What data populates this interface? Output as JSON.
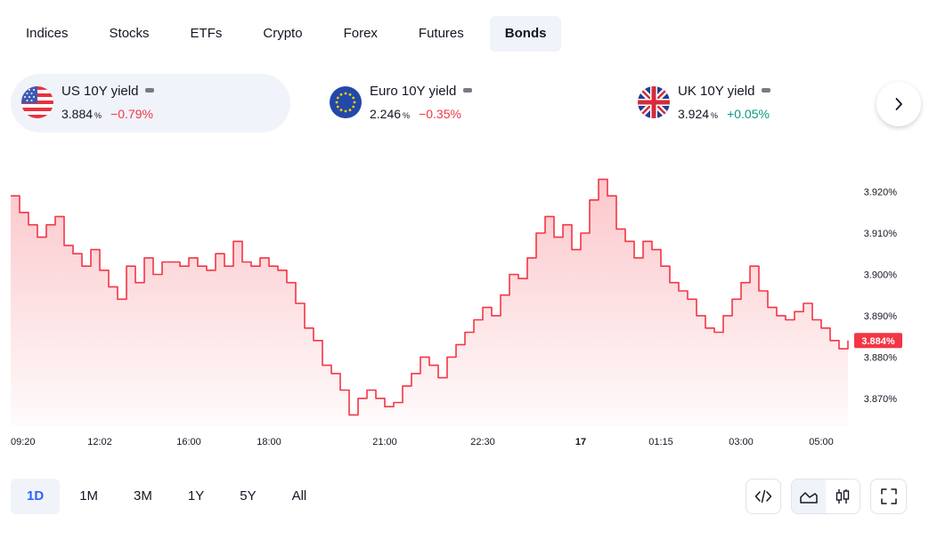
{
  "tabs": [
    {
      "label": "Indices",
      "active": false
    },
    {
      "label": "Stocks",
      "active": false
    },
    {
      "label": "ETFs",
      "active": false
    },
    {
      "label": "Crypto",
      "active": false
    },
    {
      "label": "Forex",
      "active": false
    },
    {
      "label": "Futures",
      "active": false
    },
    {
      "label": "Bonds",
      "active": true
    }
  ],
  "cards": [
    {
      "name": "US 10Y yield",
      "value": "3.884",
      "unit": "%",
      "change": "−0.79%",
      "direction": "down",
      "flag": "us-flag-icon",
      "active": true
    },
    {
      "name": "Euro 10Y yield",
      "value": "2.246",
      "unit": "%",
      "change": "−0.35%",
      "direction": "down",
      "flag": "eu-flag-icon",
      "active": false
    },
    {
      "name": "UK 10Y yield",
      "value": "3.924",
      "unit": "%",
      "change": "+0.05%",
      "direction": "up",
      "flag": "uk-flag-icon",
      "active": false
    }
  ],
  "chart_data": {
    "type": "area",
    "title": "",
    "xlabel": "",
    "ylabel": "",
    "color": "#f23645",
    "ylim": [
      3.8635,
      3.9255
    ],
    "y_ticks": [
      {
        "value": 3.92,
        "label": "3.920%"
      },
      {
        "value": 3.91,
        "label": "3.910%"
      },
      {
        "value": 3.9,
        "label": "3.900%"
      },
      {
        "value": 3.89,
        "label": "3.890%"
      },
      {
        "value": 3.88,
        "label": "3.880%"
      },
      {
        "value": 3.87,
        "label": "3.870%"
      }
    ],
    "x_ticks": [
      {
        "index": 0,
        "label": "09:20"
      },
      {
        "index": 10,
        "label": "12:02"
      },
      {
        "index": 20,
        "label": "16:00"
      },
      {
        "index": 29,
        "label": "18:00"
      },
      {
        "index": 42,
        "label": "21:00"
      },
      {
        "index": 53,
        "label": "22:30"
      },
      {
        "index": 64,
        "label": "17"
      },
      {
        "index": 73,
        "label": "01:15"
      },
      {
        "index": 82,
        "label": "03:00"
      },
      {
        "index": 91,
        "label": "05:00"
      }
    ],
    "last_value_label": "3.884%",
    "last_value": 3.884,
    "values": [
      3.919,
      3.915,
      3.912,
      3.909,
      3.912,
      3.914,
      3.907,
      3.905,
      3.902,
      3.906,
      3.901,
      3.897,
      3.894,
      3.902,
      3.898,
      3.904,
      3.9,
      3.903,
      3.903,
      3.902,
      3.904,
      3.902,
      3.901,
      3.905,
      3.902,
      3.908,
      3.903,
      3.902,
      3.904,
      3.902,
      3.901,
      3.898,
      3.893,
      3.887,
      3.884,
      3.878,
      3.876,
      3.872,
      3.866,
      3.87,
      3.872,
      3.87,
      3.868,
      3.869,
      3.873,
      3.876,
      3.88,
      3.878,
      3.875,
      3.88,
      3.883,
      3.886,
      3.889,
      3.892,
      3.89,
      3.895,
      3.9,
      3.899,
      3.904,
      3.91,
      3.914,
      3.909,
      3.912,
      3.906,
      3.91,
      3.918,
      3.923,
      3.919,
      3.911,
      3.908,
      3.904,
      3.908,
      3.906,
      3.902,
      3.898,
      3.896,
      3.894,
      3.89,
      3.887,
      3.886,
      3.89,
      3.894,
      3.898,
      3.902,
      3.896,
      3.892,
      3.89,
      3.889,
      3.891,
      3.893,
      3.889,
      3.887,
      3.884,
      3.882,
      3.884
    ]
  },
  "ranges": [
    {
      "label": "1D",
      "active": true
    },
    {
      "label": "1M",
      "active": false
    },
    {
      "label": "3M",
      "active": false
    },
    {
      "label": "1Y",
      "active": false
    },
    {
      "label": "5Y",
      "active": false
    },
    {
      "label": "All",
      "active": false
    }
  ]
}
